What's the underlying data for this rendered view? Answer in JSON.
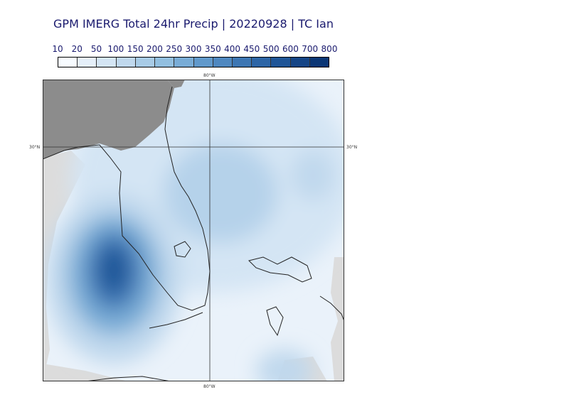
{
  "title": "GPM IMERG Total 24hr Precip | 20220928 | TC Ian",
  "colorbar": {
    "levels": [
      "10",
      "20",
      "50",
      "100",
      "150",
      "200",
      "250",
      "300",
      "350",
      "400",
      "450",
      "500",
      "600",
      "700",
      "800"
    ],
    "colors": [
      "#f7fbff",
      "#e5eff9",
      "#d4e5f4",
      "#c0d8ed",
      "#a8cbe6",
      "#92bfe0",
      "#79acd6",
      "#6199cb",
      "#4f88c0",
      "#3d76b3",
      "#2d65a6",
      "#1f5597",
      "#154586",
      "#0b3675"
    ]
  },
  "map": {
    "land_color": "#8c8c8c",
    "nodata_color": "#dcdcdc",
    "gridlines": {
      "lon_label_top": "80°W",
      "lon_label_bottom": "80°W",
      "lat_label_left": "30°N",
      "lat_label_right": "30°N"
    }
  }
}
